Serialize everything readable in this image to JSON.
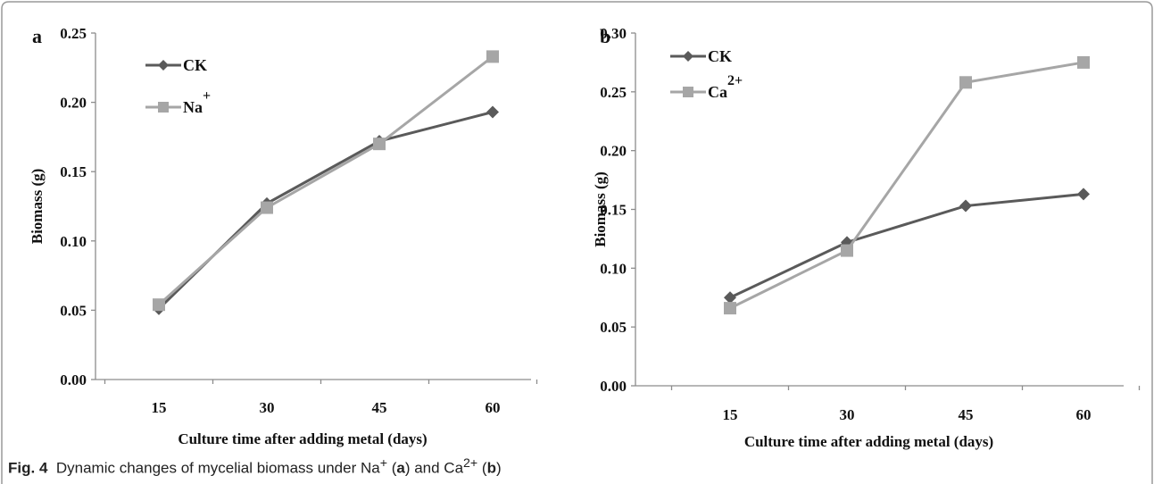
{
  "colors": {
    "ck": "#5a5a5a",
    "metal": "#a6a6a6",
    "axis": "#8c8c8c",
    "frame": "#9a9a9a"
  },
  "caption": {
    "fig_label": "Fig. 4",
    "text_prefix": "Dynamic changes of mycelial biomass under Na",
    "sup_na": "+",
    "paren_open_a": " (",
    "panel_a": "a",
    "text_mid": ") and Ca",
    "sup_ca": "2+",
    "paren_open_b": " (",
    "panel_b": "b",
    "paren_close": ")"
  },
  "chart_data": [
    {
      "panel_label": "a",
      "type": "line",
      "x": [
        15,
        30,
        45,
        60
      ],
      "xlabel": "Culture time after adding  metal (days)",
      "ylabel": "Biomass (g)",
      "ylim": [
        0,
        0.25
      ],
      "yticks": [
        "0.00",
        "0.05",
        "0.10",
        "0.15",
        "0.20",
        "0.25"
      ],
      "series": [
        {
          "name": "CK",
          "marker": "diamond",
          "values": [
            0.051,
            0.127,
            0.172,
            0.193
          ]
        },
        {
          "name": "Na",
          "sup": "+",
          "marker": "square",
          "values": [
            0.054,
            0.124,
            0.17,
            0.233
          ]
        }
      ],
      "legend": "top-left"
    },
    {
      "panel_label": "b",
      "type": "line",
      "x": [
        15,
        30,
        45,
        60
      ],
      "xlabel": "Culture time after adding metal (days)",
      "ylabel": "Biomass (g)",
      "ylim": [
        0,
        0.3
      ],
      "yticks": [
        "0.00",
        "0.05",
        "0.10",
        "0.15",
        "0.20",
        "0.25",
        "0.30"
      ],
      "series": [
        {
          "name": "CK",
          "marker": "diamond",
          "values": [
            0.075,
            0.122,
            0.153,
            0.163
          ]
        },
        {
          "name": "Ca",
          "sup": "2+",
          "marker": "square",
          "values": [
            0.066,
            0.115,
            0.258,
            0.275
          ]
        }
      ],
      "legend": "top-left"
    }
  ]
}
